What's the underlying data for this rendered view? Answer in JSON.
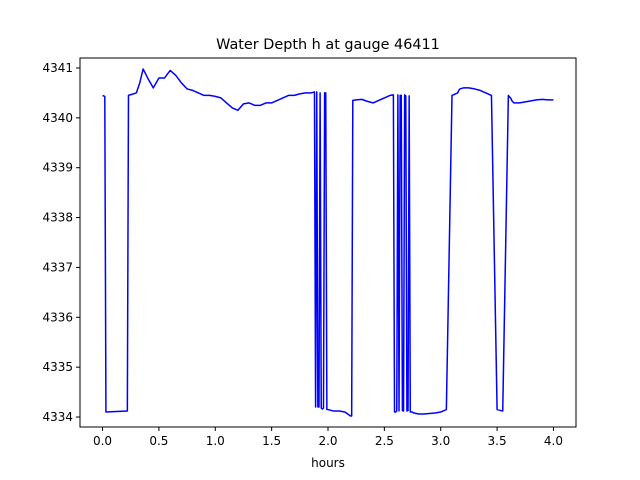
{
  "chart_data": {
    "type": "line",
    "title": "Water Depth h at gauge 46411",
    "xlabel": "hours",
    "ylabel": "",
    "xlim": [
      -0.2,
      4.2
    ],
    "ylim": [
      4333.8,
      4341.2
    ],
    "xticks": [
      0.0,
      0.5,
      1.0,
      1.5,
      2.0,
      2.5,
      3.0,
      3.5,
      4.0
    ],
    "xtick_labels": [
      "0.0",
      "0.5",
      "1.0",
      "1.5",
      "2.0",
      "2.5",
      "3.0",
      "3.5",
      "4.0"
    ],
    "yticks": [
      4334,
      4335,
      4336,
      4337,
      4338,
      4339,
      4340,
      4341
    ],
    "ytick_labels": [
      "4334",
      "4335",
      "4336",
      "4337",
      "4338",
      "4339",
      "4340",
      "4341"
    ],
    "grid": false,
    "series": [
      {
        "color": "#0000ff",
        "x": [
          0.0,
          0.02,
          0.03,
          0.22,
          0.23,
          0.3,
          0.33,
          0.36,
          0.4,
          0.45,
          0.5,
          0.55,
          0.6,
          0.65,
          0.7,
          0.75,
          0.8,
          0.85,
          0.9,
          0.95,
          1.0,
          1.05,
          1.1,
          1.15,
          1.2,
          1.25,
          1.3,
          1.35,
          1.4,
          1.45,
          1.5,
          1.55,
          1.6,
          1.65,
          1.7,
          1.75,
          1.8,
          1.85,
          1.88,
          1.89,
          1.9,
          1.91,
          1.92,
          1.93,
          1.94,
          1.95,
          1.96,
          1.97,
          1.98,
          1.99,
          2.0,
          2.05,
          2.1,
          2.15,
          2.2,
          2.21,
          2.22,
          2.25,
          2.3,
          2.35,
          2.4,
          2.45,
          2.5,
          2.55,
          2.58,
          2.59,
          2.6,
          2.61,
          2.62,
          2.63,
          2.64,
          2.65,
          2.66,
          2.67,
          2.68,
          2.69,
          2.7,
          2.71,
          2.72,
          2.73,
          2.74,
          2.75,
          2.76,
          2.77,
          2.78,
          2.79,
          2.8,
          2.85,
          2.9,
          2.95,
          3.0,
          3.05,
          3.1,
          3.15,
          3.16,
          3.17,
          3.2,
          3.25,
          3.3,
          3.35,
          3.4,
          3.45,
          3.5,
          3.55,
          3.6,
          3.61,
          3.62,
          3.63,
          3.64,
          3.65,
          3.7,
          3.75,
          3.8,
          3.85,
          3.9,
          3.95,
          4.0
        ],
        "y": [
          4340.45,
          4340.43,
          4334.1,
          4334.12,
          4340.45,
          4340.5,
          4340.7,
          4340.98,
          4340.8,
          4340.6,
          4340.8,
          4340.8,
          4340.95,
          4340.85,
          4340.7,
          4340.58,
          4340.55,
          4340.5,
          4340.45,
          4340.45,
          4340.43,
          4340.4,
          4340.3,
          4340.2,
          4340.15,
          4340.28,
          4340.3,
          4340.25,
          4340.25,
          4340.3,
          4340.3,
          4340.35,
          4340.4,
          4340.45,
          4340.45,
          4340.48,
          4340.5,
          4340.5,
          4340.52,
          4334.2,
          4340.52,
          4334.2,
          4334.2,
          4340.5,
          4334.18,
          4334.16,
          4334.18,
          4340.5,
          4340.5,
          4334.15,
          4334.15,
          4334.12,
          4334.12,
          4334.1,
          4334.02,
          4334.02,
          4340.35,
          4340.36,
          4340.37,
          4340.33,
          4340.3,
          4340.35,
          4340.4,
          4340.45,
          4340.46,
          4334.1,
          4334.1,
          4334.12,
          4340.46,
          4334.12,
          4340.45,
          4340.45,
          4334.13,
          4334.12,
          4340.46,
          4340.44,
          4334.12,
          4334.13,
          4340.44,
          4334.1,
          4334.1,
          4334.1,
          4334.08,
          4334.08,
          4334.07,
          4334.07,
          4334.06,
          4334.06,
          4334.07,
          4334.08,
          4334.1,
          4334.15,
          4340.45,
          4340.5,
          4340.55,
          4340.58,
          4340.6,
          4340.6,
          4340.58,
          4340.55,
          4340.5,
          4340.45,
          4334.15,
          4334.12,
          4340.45,
          4340.42,
          4340.4,
          4340.35,
          4340.32,
          4340.3,
          4340.3,
          4340.32,
          4340.34,
          4340.36,
          4340.37,
          4340.36,
          4340.36
        ]
      }
    ]
  }
}
